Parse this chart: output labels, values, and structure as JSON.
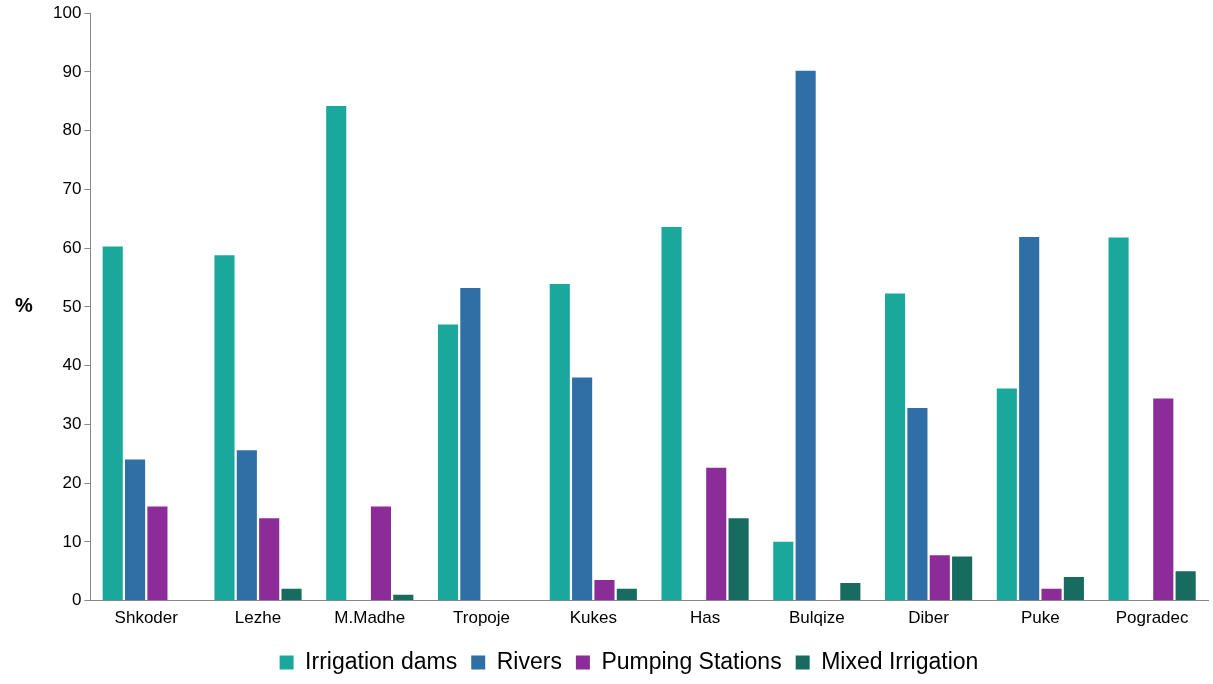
{
  "chart_data": {
    "type": "bar",
    "ylabel": "%",
    "categories": [
      "Shkoder",
      "Lezhe",
      "M.Madhe",
      "Tropoje",
      "Kukes",
      "Has",
      "Bulqize",
      "Diber",
      "Puke",
      "Pogradec"
    ],
    "series": [
      {
        "name": "Irrigation dams",
        "color": "#1aa89c",
        "values": [
          60.3,
          58.8,
          84.2,
          47,
          53.9,
          63.6,
          10,
          52.3,
          36.1,
          61.8
        ]
      },
      {
        "name": "Rivers",
        "color": "#2f6fa6",
        "values": [
          24,
          25.6,
          0,
          53.2,
          38,
          0,
          90.2,
          32.8,
          61.9,
          0
        ]
      },
      {
        "name": "Pumping Stations",
        "color": "#8b2c98",
        "values": [
          16,
          14,
          16,
          0,
          3.5,
          22.6,
          0,
          7.7,
          2,
          34.4
        ]
      },
      {
        "name": "Mixed Irrigation",
        "color": "#176b5f",
        "values": [
          0,
          2,
          1,
          0,
          2,
          14,
          3,
          7.5,
          4,
          5
        ]
      }
    ],
    "ylim": [
      0,
      100
    ],
    "yticks": [
      0,
      10,
      20,
      30,
      40,
      50,
      60,
      70,
      80,
      90,
      100
    ],
    "grid": false,
    "legend": "bottom"
  }
}
